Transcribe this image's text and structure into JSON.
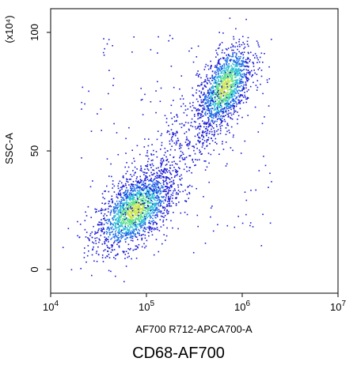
{
  "chart_data": {
    "type": "scatter",
    "style": "flow-cytometry density dot plot",
    "xlabel": "AF700 R712-APCA700-A",
    "ylabel": "SSC-A",
    "y_multiplier_label": "(x10⁴)",
    "x_scale": "log",
    "xlim": [
      10000,
      10000000
    ],
    "ylim": [
      -10,
      110
    ],
    "x_ticks": [
      {
        "value": 10000,
        "base": "10",
        "exp": "4"
      },
      {
        "value": 100000,
        "base": "10",
        "exp": "5"
      },
      {
        "value": 1000000,
        "base": "10",
        "exp": "6"
      },
      {
        "value": 10000000,
        "base": "10",
        "exp": "7"
      }
    ],
    "y_ticks": [
      {
        "value": 0,
        "label": "0"
      },
      {
        "value": 50,
        "label": "50"
      },
      {
        "value": 100,
        "label": "100"
      }
    ],
    "grid": false,
    "density_colors": [
      "#1a1ad6",
      "#1e6ee6",
      "#2ec0d8",
      "#5ee08a",
      "#c8e64a"
    ],
    "populations": [
      {
        "x_center": 75000,
        "y_center": 25,
        "x_spread_log": 0.2,
        "y_spread": 8
      },
      {
        "x_center": 650000,
        "y_center": 77,
        "x_spread_log": 0.14,
        "y_spread": 9
      }
    ]
  },
  "caption": "CD68-AF700"
}
